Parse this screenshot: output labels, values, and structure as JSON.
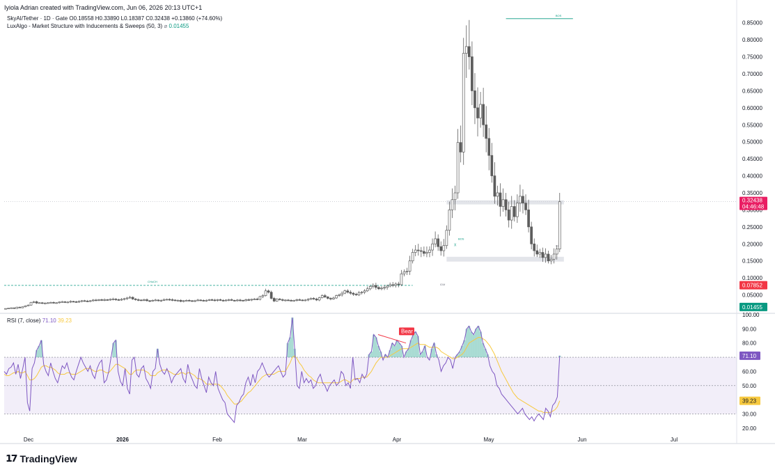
{
  "header": {
    "attribution": "Iyiola Adrian created with TradingView.com, Jun 06, 2026 20:13 UTC+1"
  },
  "legend": {
    "symbol": "SkyAI/Tether · 1D · Gate",
    "ohlc": "O0.18558 H0.33890 L0.18387 C0.32438 +0.13860 (+74.60%)",
    "indicator": "LuxAlgo - Market Structure with Inducements & Sweeps (50, 3)",
    "indicator_icon": "eye-off-icon",
    "indicator_value": "0.01455",
    "rsi_label": "RSI (7, close)",
    "rsi_value": "71.10",
    "rsi_ma_value": "39.23"
  },
  "footer": {
    "brand": "TradingView",
    "logo_icon": "tradingview-logo-icon"
  },
  "colors": {
    "up": "#089981",
    "candle": "#5d5d5d",
    "rsi_line": "#7e57c2",
    "rsi_ma": "#f7c93f",
    "bear": "#f23645",
    "price_tag": "#e91e63"
  },
  "chart_data": [
    {
      "type": "candlestick",
      "title": "SkyAI/Tether",
      "ylim": [
        0.0,
        0.88
      ],
      "y_ticks": [
        "0.85000",
        "0.80000",
        "0.75000",
        "0.70000",
        "0.65000",
        "0.60000",
        "0.55000",
        "0.50000",
        "0.45000",
        "0.40000",
        "0.35000",
        "0.30000",
        "0.25000",
        "0.20000",
        "0.15000",
        "0.10000",
        "0.05000"
      ],
      "x_ticks": [
        "Dec",
        "2026",
        "Feb",
        "Mar",
        "Apr",
        "May",
        "Jun",
        "Jul"
      ],
      "closes": [
        0.01,
        0.011,
        0.012,
        0.01,
        0.014,
        0.012,
        0.015,
        0.018,
        0.02,
        0.028,
        0.03,
        0.026,
        0.027,
        0.025,
        0.026,
        0.027,
        0.028,
        0.026,
        0.027,
        0.029,
        0.03,
        0.028,
        0.029,
        0.031,
        0.03,
        0.029,
        0.031,
        0.033,
        0.032,
        0.031,
        0.033,
        0.035,
        0.034,
        0.036,
        0.035,
        0.036,
        0.035,
        0.037,
        0.038,
        0.036,
        0.035,
        0.037,
        0.039,
        0.041,
        0.043,
        0.038,
        0.036,
        0.035,
        0.034,
        0.036,
        0.033,
        0.032,
        0.034,
        0.035,
        0.033,
        0.034,
        0.036,
        0.037,
        0.036,
        0.035,
        0.033,
        0.034,
        0.031,
        0.033,
        0.034,
        0.033,
        0.032,
        0.033,
        0.035,
        0.034,
        0.033,
        0.034,
        0.036,
        0.035,
        0.034,
        0.036,
        0.034,
        0.033,
        0.035,
        0.036,
        0.034,
        0.033,
        0.035,
        0.034,
        0.033,
        0.036,
        0.035,
        0.037,
        0.038,
        0.037,
        0.045,
        0.048,
        0.062,
        0.058,
        0.04,
        0.032,
        0.038,
        0.036,
        0.034,
        0.035,
        0.034,
        0.033,
        0.034,
        0.036,
        0.035,
        0.034,
        0.035,
        0.037,
        0.04,
        0.038,
        0.035,
        0.042,
        0.048,
        0.044,
        0.04,
        0.038,
        0.041,
        0.048,
        0.05,
        0.055,
        0.062,
        0.058,
        0.055,
        0.052,
        0.05,
        0.056,
        0.058,
        0.062,
        0.068,
        0.075,
        0.078,
        0.072,
        0.068,
        0.07,
        0.072,
        0.076,
        0.08,
        0.078,
        0.082,
        0.08,
        0.112,
        0.118,
        0.12,
        0.15,
        0.175,
        0.182,
        0.18,
        0.178,
        0.172,
        0.175,
        0.182,
        0.2,
        0.215,
        0.192,
        0.18,
        0.195,
        0.24,
        0.3,
        0.33,
        0.35,
        0.498,
        0.47,
        0.76,
        0.78,
        0.75,
        0.65,
        0.6,
        0.57,
        0.61,
        0.55,
        0.51,
        0.46,
        0.4,
        0.34,
        0.35,
        0.31,
        0.33,
        0.3,
        0.27,
        0.31,
        0.28,
        0.32,
        0.34,
        0.32,
        0.3,
        0.25,
        0.2,
        0.18,
        0.17,
        0.175,
        0.16,
        0.17,
        0.15,
        0.155,
        0.17,
        0.185,
        0.324
      ],
      "annotations": [
        {
          "label": "BOS",
          "value": 0.862
        },
        {
          "label": "CHoCH",
          "value": 0.078
        },
        {
          "label": "IDM",
          "value": 0.09
        },
        {
          "label": "BOS",
          "value": 0.21
        },
        {
          "label": "IDM",
          "value": 0.195
        },
        {
          "label": "X",
          "value": 0.2
        }
      ],
      "zones": [
        [
          0.316,
          0.328
        ],
        [
          0.148,
          0.162
        ]
      ],
      "last_price_label": "0.32438",
      "countdown_label": "04:46:48",
      "level_label_red": "0.07852",
      "level_label_green": "0.01455"
    },
    {
      "type": "line",
      "title": "RSI (7, close)",
      "ylim": [
        15,
        100
      ],
      "y_ticks": [
        "100.00",
        "90.00",
        "80.00",
        "70.00",
        "60.00",
        "50.00",
        "40.00",
        "30.00",
        "20.00"
      ],
      "bands": {
        "upper": 70,
        "middle": 50,
        "lower": 30
      },
      "series": [
        {
          "name": "RSI",
          "values": [
            60,
            58,
            62,
            63,
            66,
            58,
            65,
            55,
            62,
            70,
            38,
            32,
            62,
            66,
            75,
            78,
            82,
            65,
            60,
            57,
            66,
            60,
            55,
            52,
            58,
            64,
            62,
            66,
            60,
            56,
            54,
            60,
            65,
            70,
            66,
            63,
            60,
            64,
            58,
            55,
            62,
            66,
            68,
            52,
            54,
            60,
            70,
            80,
            82,
            60,
            53,
            50,
            62,
            48,
            44,
            68,
            70,
            58,
            56,
            62,
            64,
            55,
            52,
            48,
            60,
            62,
            76,
            65,
            60,
            58,
            62,
            58,
            52,
            56,
            58,
            60,
            62,
            55,
            52,
            65,
            58,
            54,
            50,
            48,
            62,
            55,
            50,
            45,
            56,
            52,
            50,
            60,
            48,
            44,
            40,
            38,
            30,
            28,
            26,
            24,
            36,
            38,
            42,
            44,
            52,
            56,
            50,
            58,
            52,
            60,
            62,
            66,
            62,
            58,
            56,
            58,
            60,
            62,
            64,
            60,
            56,
            58,
            80,
            84,
            98,
            76,
            50,
            48,
            60,
            52,
            55,
            52,
            54,
            48,
            50,
            55,
            58,
            52,
            50,
            46,
            50,
            52,
            54,
            50,
            52,
            60,
            58,
            50,
            52,
            48,
            70,
            54,
            55,
            52,
            58,
            55,
            58,
            72,
            74,
            86,
            84,
            78,
            74,
            68,
            72,
            70,
            75,
            80,
            78,
            82,
            80,
            78,
            70,
            74,
            76,
            82,
            86,
            88,
            85,
            72,
            74,
            78,
            70,
            68,
            76,
            80,
            72,
            68,
            60,
            64,
            66,
            70,
            68,
            62,
            70,
            72,
            74,
            78,
            82,
            90,
            92,
            88,
            86,
            90,
            92,
            88,
            80,
            76,
            72,
            64,
            60,
            58,
            50,
            48,
            44,
            42,
            40,
            38,
            36,
            34,
            32,
            30,
            32,
            34,
            30,
            28,
            26,
            28,
            25,
            28,
            30,
            28,
            26,
            34,
            32,
            28,
            36,
            38,
            42,
            71.1
          ]
        },
        {
          "name": "RSI-based MA",
          "values": [
            58,
            57,
            57,
            58,
            59,
            59,
            60,
            59,
            59,
            60,
            57,
            54,
            54,
            55,
            57,
            60,
            63,
            64,
            64,
            63,
            63,
            62,
            61,
            59,
            58,
            58,
            58,
            59,
            59,
            58,
            58,
            58,
            59,
            60,
            61,
            62,
            62,
            62,
            61,
            60,
            60,
            61,
            61,
            60,
            59,
            59,
            61,
            63,
            65,
            65,
            64,
            63,
            62,
            60,
            58,
            58,
            60,
            61,
            61,
            61,
            61,
            60,
            59,
            57,
            57,
            57,
            59,
            60,
            61,
            61,
            61,
            60,
            59,
            58,
            58,
            58,
            59,
            59,
            58,
            59,
            59,
            58,
            57,
            55,
            55,
            54,
            53,
            51,
            51,
            51,
            51,
            51,
            51,
            50,
            48,
            46,
            43,
            41,
            39,
            37,
            37,
            38,
            39,
            41,
            43,
            45,
            46,
            48,
            50,
            52,
            54,
            56,
            57,
            58,
            58,
            58,
            58,
            59,
            60,
            60,
            60,
            60,
            63,
            66,
            70,
            71,
            69,
            66,
            64,
            61,
            59,
            57,
            56,
            54,
            53,
            52,
            52,
            52,
            52,
            52,
            52,
            52,
            52,
            52,
            52,
            53,
            54,
            54,
            53,
            52,
            54,
            55,
            55,
            55,
            56,
            56,
            56,
            58,
            60,
            63,
            66,
            68,
            70,
            70,
            70,
            70,
            71,
            72,
            73,
            74,
            75,
            76,
            76,
            76,
            76,
            77,
            78,
            79,
            80,
            79,
            79,
            79,
            78,
            77,
            77,
            77,
            77,
            76,
            74,
            73,
            72,
            71,
            70,
            69,
            69,
            70,
            71,
            72,
            74,
            77,
            80,
            81,
            82,
            83,
            84,
            84,
            83,
            82,
            80,
            78,
            75,
            72,
            68,
            64,
            60,
            57,
            54,
            51,
            48,
            45,
            43,
            41,
            40,
            39,
            38,
            37,
            36,
            35,
            34,
            33,
            32,
            32,
            31,
            31,
            31,
            31,
            32,
            33,
            35,
            39.23
          ]
        }
      ],
      "bear_label": "Bear",
      "rsi_value_label": "71.10",
      "ma_value_label": "39.23"
    }
  ]
}
